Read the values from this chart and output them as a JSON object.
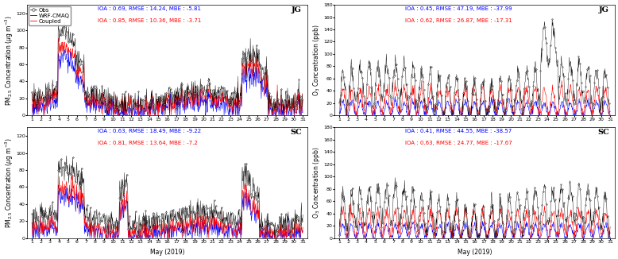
{
  "days": 31,
  "pts_per_day": 24,
  "stations": [
    "JG",
    "SC"
  ],
  "legend_labels": [
    "Obs",
    "WRF-CMAQ",
    "Coupled"
  ],
  "pm25_jg_stats": {
    "blue": "IOA : 0.69, RMSE : 14.24, MBE : -5.81",
    "red": "IOA : 0.85, RMSE : 10.36, MBE : -3.71"
  },
  "o3_jg_stats": {
    "blue": "IOA : 0.45, RMSE : 47.19, MBE : -37.99",
    "red": "IOA : 0.62, RMSE : 26.87, MBE : -17.31"
  },
  "pm25_sc_stats": {
    "blue": "IOA : 0.63, RMSE : 18.49, MBE : -9.22",
    "red": "IOA : 0.81, RMSE : 13.64, MBE : -7.2"
  },
  "o3_sc_stats": {
    "blue": "IOA : 0.41, RMSE : 44.55, MBE : -38.57",
    "red": "IOA : 0.63, RMSE : 24.77, MBE : -17.67"
  },
  "pm25_ylim": [
    0,
    130
  ],
  "pm25_yticks": [
    0,
    20,
    40,
    60,
    80,
    100,
    120
  ],
  "o3_ylim": [
    0,
    180
  ],
  "o3_yticks": [
    0,
    20,
    40,
    60,
    80,
    100,
    120,
    140,
    160,
    180
  ],
  "xlabel": "May (2019)",
  "ylabel_pm25": "PM$_{2.5}$ Concentration ($\\mu$g m$^{-3}$)",
  "ylabel_o3": "O$_3$ Concentration (ppb)",
  "background_color": "#ffffff",
  "stat_fontsize": 5.0,
  "label_fontsize": 5.5,
  "tick_fontsize": 4.5,
  "legend_fontsize": 5.0,
  "station_fontsize": 7
}
